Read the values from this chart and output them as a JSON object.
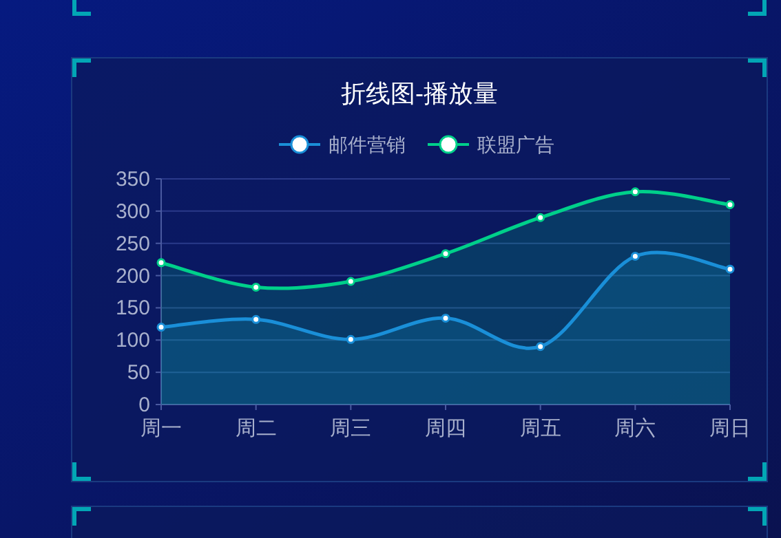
{
  "chart_data": {
    "type": "area",
    "title": "折线图-播放量",
    "categories": [
      "周一",
      "周二",
      "周三",
      "周四",
      "周五",
      "周六",
      "周日"
    ],
    "series": [
      {
        "name": "邮件营销",
        "color": "#1a8fd8",
        "values": [
          120,
          132,
          101,
          134,
          90,
          230,
          210
        ]
      },
      {
        "name": "联盟广告",
        "color": "#00d08a",
        "values": [
          220,
          182,
          191,
          234,
          290,
          330,
          310
        ]
      }
    ],
    "ylim": [
      0,
      350
    ],
    "yticks": [
      0,
      50,
      100,
      150,
      200,
      250,
      300,
      350
    ],
    "grid": "y",
    "legend": "top",
    "marker": "circle",
    "line_style": "solid"
  }
}
